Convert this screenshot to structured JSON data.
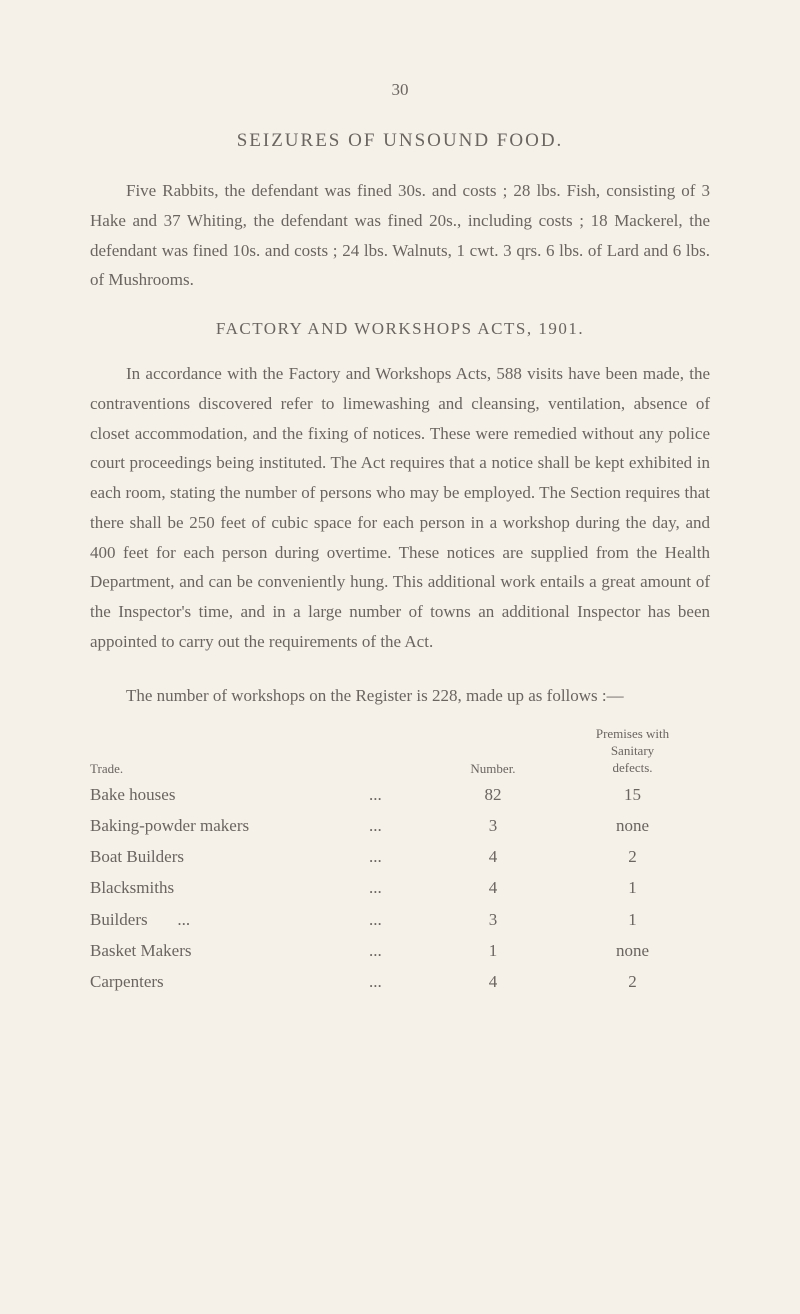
{
  "page_number": "30",
  "heading1": "SEIZURES OF UNSOUND FOOD.",
  "paragraph1": "Five Rabbits, the defendant was fined 30s. and costs ; 28 lbs. Fish, consisting of 3 Hake and 37 Whiting, the defendant was fined 20s., including costs ; 18 Mackerel, the defendant was fined 10s. and costs ; 24 lbs. Walnuts, 1 cwt. 3 qrs. 6 lbs. of Lard and 6 lbs. of Mushrooms.",
  "heading2": "FACTORY AND WORKSHOPS ACTS, 1901.",
  "paragraph2": "In accordance with the Factory and Workshops Acts, 588 visits have been made, the contraventions discovered refer to limewashing and cleansing, ventilation, absence of closet accommodation, and the fixing of notices. These were remedied without any police court proceedings being instituted. The Act requires that a notice shall be kept exhibited in each room, stating the number of persons who may be employed. The Section requires that there shall be 250 feet of cubic space for each person in a workshop during the day, and 400 feet for each person during overtime. These notices are supplied from the Health Department, and can be conveniently hung. This additional work entails a great amount of the Inspector's time, and in a large number of towns an additional Inspector has been appointed to carry out the requirements of the Act.",
  "table_intro": "The number of workshops on the Register is 228, made up as follows :—",
  "table": {
    "headers": {
      "trade": "Trade.",
      "number": "Number.",
      "premises": "Premises with\nSanitary\ndefects."
    },
    "rows": [
      {
        "trade": "Bake houses",
        "dots": "...",
        "number": "82",
        "premises": "15"
      },
      {
        "trade": "Baking-powder makers",
        "dots": "...",
        "number": "3",
        "premises": "none"
      },
      {
        "trade": "Boat Builders",
        "dots": "...",
        "number": "4",
        "premises": "2"
      },
      {
        "trade": "Blacksmiths",
        "dots": "...",
        "number": "4",
        "premises": "1"
      },
      {
        "trade": "Builders       ...",
        "dots": "...",
        "number": "3",
        "premises": "1"
      },
      {
        "trade": "Basket Makers",
        "dots": "...",
        "number": "1",
        "premises": "none"
      },
      {
        "trade": "Carpenters",
        "dots": "...",
        "number": "4",
        "premises": "2"
      }
    ]
  }
}
